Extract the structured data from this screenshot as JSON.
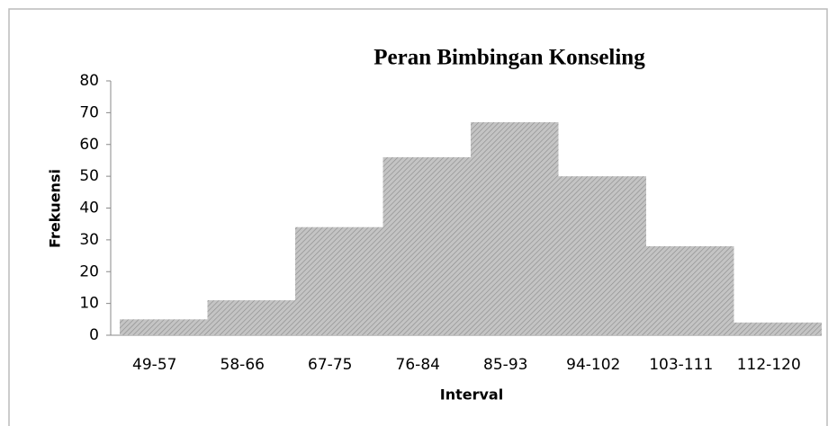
{
  "chart_data": {
    "type": "bar",
    "title": "Peran Bimbingan Konseling",
    "x_label": "Interval",
    "y_label": "Frekuensi",
    "categories": [
      "49-57",
      "58-66",
      "67-75",
      "76-84",
      "85-93",
      "94-102",
      "103-111",
      "112-120"
    ],
    "values": [
      5,
      11,
      34,
      56,
      67,
      50,
      28,
      4
    ],
    "color": "#c4c4c4",
    "ylim": [
      0,
      80
    ],
    "yticks": [
      0,
      10,
      20,
      30,
      40,
      50,
      60,
      70,
      80
    ],
    "grid": false
  }
}
